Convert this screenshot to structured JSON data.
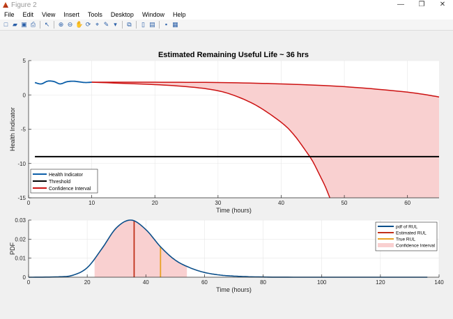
{
  "window": {
    "title": "Figure 2",
    "controls": [
      "minimize",
      "restore",
      "close"
    ]
  },
  "menu": [
    "File",
    "Edit",
    "View",
    "Insert",
    "Tools",
    "Desktop",
    "Window",
    "Help"
  ],
  "toolbar": [
    {
      "icon": "new-file-icon",
      "glyph": "□"
    },
    {
      "icon": "open-folder-icon",
      "glyph": "▰"
    },
    {
      "icon": "save-icon",
      "glyph": "▣"
    },
    {
      "icon": "print-icon",
      "glyph": "⎙"
    },
    {
      "sep": true
    },
    {
      "icon": "pointer-icon",
      "glyph": "↖"
    },
    {
      "sep": true
    },
    {
      "icon": "zoom-in-icon",
      "glyph": "⊕"
    },
    {
      "icon": "zoom-out-icon",
      "glyph": "⊖"
    },
    {
      "icon": "pan-icon",
      "glyph": "✋"
    },
    {
      "icon": "rotate-icon",
      "glyph": "⟳"
    },
    {
      "icon": "data-cursor-icon",
      "glyph": "⌖"
    },
    {
      "icon": "brush-icon",
      "glyph": "✎"
    },
    {
      "icon": "dropdown-icon",
      "glyph": "▾"
    },
    {
      "sep": true
    },
    {
      "icon": "link-plot-icon",
      "glyph": "⧉"
    },
    {
      "sep": true
    },
    {
      "icon": "colorbar-icon",
      "glyph": "▯"
    },
    {
      "icon": "legend-icon",
      "glyph": "▤"
    },
    {
      "sep": true
    },
    {
      "icon": "hide-plot-tools-icon",
      "glyph": "▪"
    },
    {
      "icon": "show-plot-tools-icon",
      "glyph": "▦"
    }
  ],
  "colors": {
    "health": "#0b5ea8",
    "threshold": "#000000",
    "ci_line": "#cc1111",
    "ci_fill": "#f9d0d0",
    "pdf": "#0b4f8a",
    "est": "#c0301a",
    "true": "#e8a020"
  },
  "chart_data": [
    {
      "type": "line",
      "title": "Estimated Remaining Useful Life ~ 36 hrs",
      "xlabel": "Time (hours)",
      "ylabel": "Health Indicator",
      "xlim": [
        0,
        65
      ],
      "ylim": [
        -15,
        5
      ],
      "xticks": [
        0,
        10,
        20,
        30,
        40,
        50,
        60
      ],
      "yticks": [
        5,
        0,
        -5,
        -10,
        -15
      ],
      "grid": true,
      "legend": "bottom-left",
      "series": [
        {
          "name": "Health Indicator",
          "x": [
            1,
            2,
            3,
            4,
            5,
            6,
            7,
            8,
            9,
            10
          ],
          "y": [
            1.8,
            1.6,
            2.0,
            1.95,
            1.6,
            1.9,
            2.0,
            1.9,
            1.8,
            1.85
          ]
        },
        {
          "name": "Threshold",
          "x": [
            1,
            65
          ],
          "y": [
            -9,
            -9
          ]
        },
        {
          "name": "Confidence Interval",
          "upper": {
            "x": [
              10,
              20,
              30,
              40,
              50,
              60,
              65
            ],
            "y": [
              1.85,
              1.85,
              1.8,
              1.6,
              1.2,
              0.4,
              -0.3
            ]
          },
          "lower": {
            "x": [
              10,
              20,
              25,
              28.8,
              32,
              36,
              40,
              42,
              44,
              45,
              46,
              47,
              47.7
            ],
            "y": [
              1.85,
              1.5,
              1.2,
              0.8,
              0.1,
              -1.5,
              -4.0,
              -5.8,
              -8.3,
              -9.7,
              -11.5,
              -13.4,
              -15
            ]
          }
        }
      ]
    },
    {
      "type": "line",
      "xlabel": "Time (hours)",
      "ylabel": "PDF",
      "xlim": [
        0,
        140
      ],
      "ylim": [
        0,
        0.03
      ],
      "xticks": [
        0,
        20,
        40,
        60,
        80,
        100,
        120,
        140
      ],
      "yticks": [
        0.03,
        0.02,
        0.01,
        0
      ],
      "grid": true,
      "legend": "top-right",
      "series": [
        {
          "name": "pdf of RUL",
          "x": [
            0,
            10,
            15,
            20,
            25,
            30,
            35,
            40,
            45,
            50,
            55,
            60,
            65,
            70,
            80,
            100,
            136
          ],
          "y": [
            0,
            0.0002,
            0.001,
            0.005,
            0.015,
            0.026,
            0.03,
            0.025,
            0.016,
            0.009,
            0.005,
            0.0025,
            0.0012,
            0.0006,
            0.0001,
            0,
            0
          ]
        },
        {
          "name": "Estimated RUL",
          "x": 36
        },
        {
          "name": "True RUL",
          "x": 45
        },
        {
          "name": "Confidence Interval",
          "range": [
            22.5,
            54
          ]
        }
      ]
    }
  ]
}
